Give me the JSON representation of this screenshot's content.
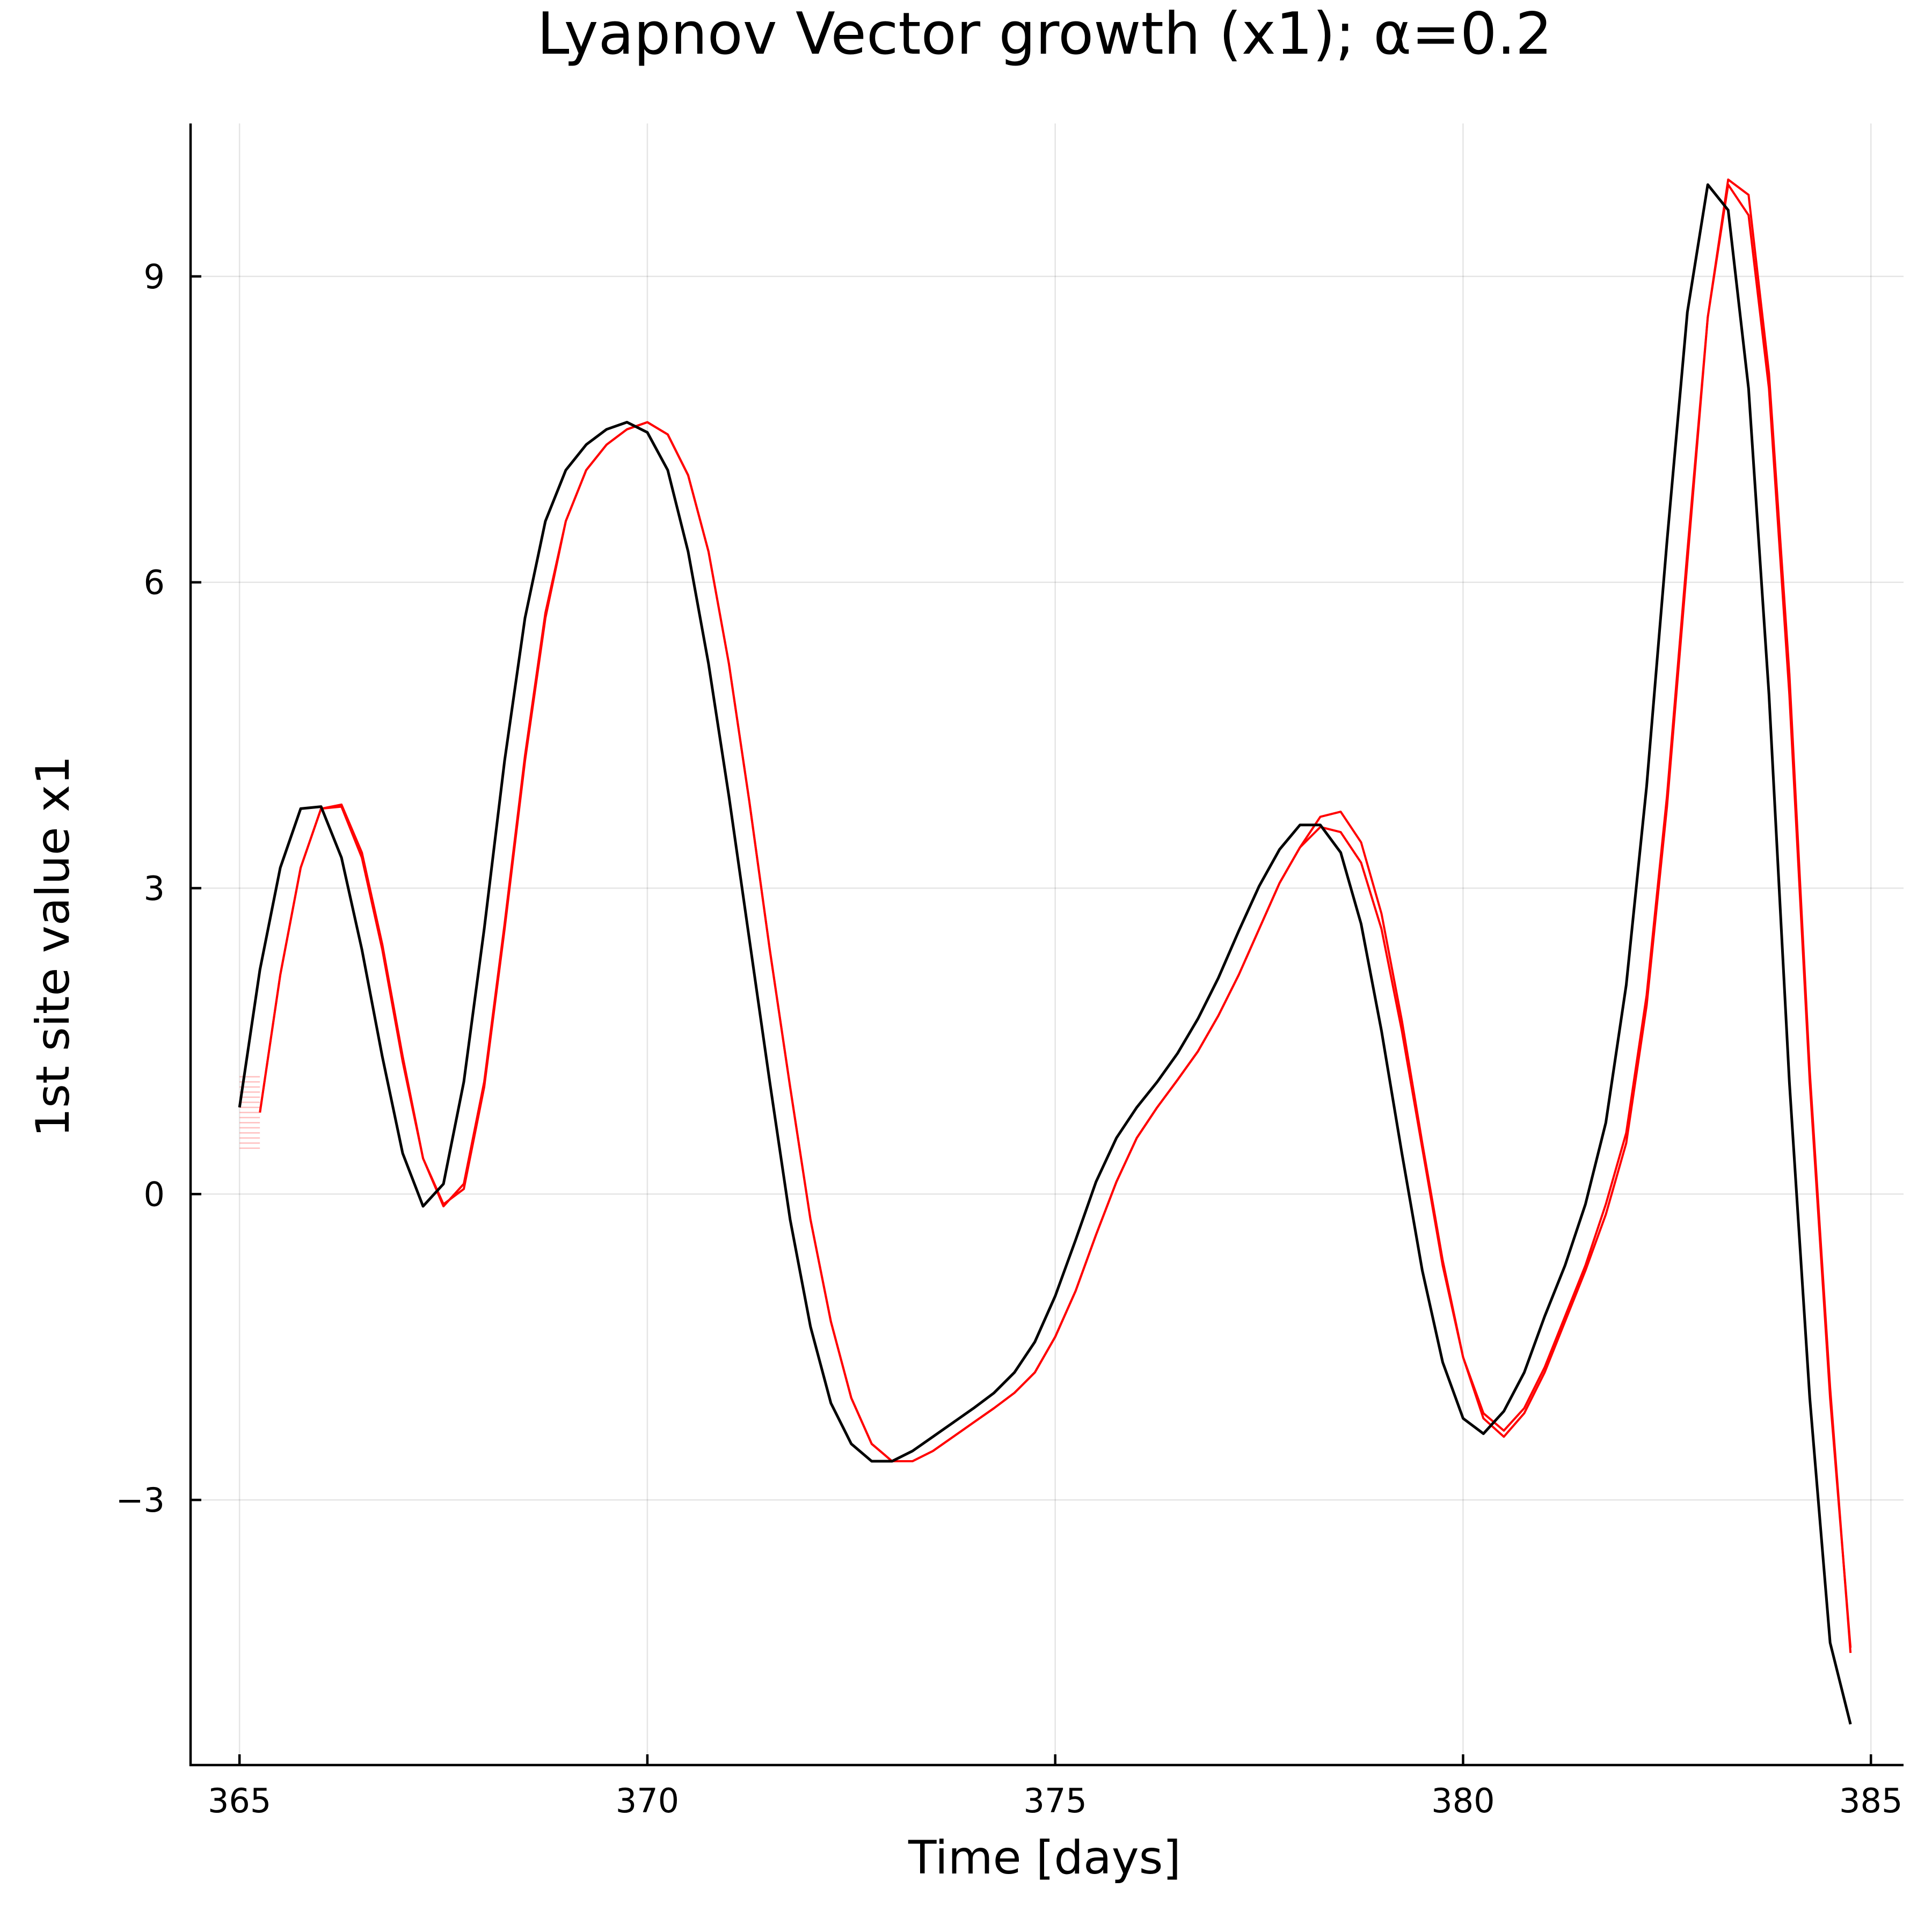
{
  "chart_data": {
    "type": "line",
    "title": "Lyapnov Vector growth (x1); α=0.2",
    "xlabel": "Time [days]",
    "ylabel": "1st site value x1",
    "xlim": [
      364.4,
      385.4
    ],
    "ylim": [
      -5.6,
      10.5
    ],
    "grid": true,
    "legend": "none",
    "x_ticks": [
      365,
      370,
      375,
      380,
      385
    ],
    "x_tick_labels": [
      "365",
      "370",
      "375",
      "380",
      "385"
    ],
    "y_ticks": [
      -3,
      0,
      3,
      6,
      9
    ],
    "y_tick_labels": [
      "−3",
      "0",
      "3",
      "6",
      "9"
    ],
    "colors": {
      "reference": "#000000",
      "perturbed": "#ff0000"
    },
    "series": [
      {
        "color": "#000000",
        "x": [
          365.0,
          365.25,
          365.5,
          365.75,
          366.0,
          366.25,
          366.5,
          366.75,
          367.0,
          367.25,
          367.5,
          367.75,
          368.0,
          368.25,
          368.5,
          368.75,
          369.0,
          369.25,
          369.5,
          369.75,
          370.0,
          370.25,
          370.5,
          370.75,
          371.0,
          371.25,
          371.5,
          371.75,
          372.0,
          372.25,
          372.5,
          372.75,
          373.0,
          373.25,
          373.5,
          373.75,
          374.0,
          374.25,
          374.5,
          374.75,
          375.0,
          375.25,
          375.5,
          375.75,
          376.0,
          376.25,
          376.5,
          376.75,
          377.0,
          377.25,
          377.5,
          377.75,
          378.0,
          378.25,
          378.5,
          378.75,
          379.0,
          379.25,
          379.5,
          379.75,
          380.0,
          380.25,
          380.5,
          380.75,
          381.0,
          381.25,
          381.5,
          381.75,
          382.0,
          382.25,
          382.5,
          382.75,
          383.0,
          383.25,
          383.5,
          383.75,
          384.0,
          384.25,
          384.5,
          384.75
        ],
        "values": [
          0.85,
          2.2,
          3.2,
          3.78,
          3.8,
          3.3,
          2.4,
          1.35,
          0.4,
          -0.12,
          0.1,
          1.1,
          2.6,
          4.25,
          5.65,
          6.6,
          7.1,
          7.35,
          7.5,
          7.57,
          7.47,
          7.1,
          6.3,
          5.2,
          3.9,
          2.5,
          1.1,
          -0.25,
          -1.3,
          -2.05,
          -2.45,
          -2.62,
          -2.62,
          -2.52,
          -2.38,
          -2.24,
          -2.1,
          -1.95,
          -1.75,
          -1.45,
          -1.0,
          -0.45,
          0.12,
          0.55,
          0.85,
          1.1,
          1.38,
          1.72,
          2.12,
          2.58,
          3.02,
          3.38,
          3.62,
          3.62,
          3.35,
          2.65,
          1.6,
          0.4,
          -0.75,
          -1.65,
          -2.2,
          -2.35,
          -2.13,
          -1.75,
          -1.2,
          -0.7,
          -0.1,
          0.7,
          2.05,
          4.0,
          6.4,
          8.65,
          9.9,
          9.65,
          7.9,
          4.9,
          1.1,
          -2.0,
          -4.4,
          -5.2
        ]
      },
      {
        "color": "#ff0000",
        "x": [
          365.25,
          365.5,
          365.75,
          366.0,
          366.25,
          366.5,
          366.75,
          367.0,
          367.25,
          367.5,
          367.75,
          368.0,
          368.25,
          368.5,
          368.75,
          369.0,
          369.25,
          369.5,
          369.75,
          370.0,
          370.25,
          370.5,
          370.75,
          371.0,
          371.25,
          371.5,
          371.75,
          372.0,
          372.25,
          372.5,
          372.75,
          373.0,
          373.25,
          373.5,
          373.75,
          374.0,
          374.25,
          374.5,
          374.75,
          375.0,
          375.25,
          375.5,
          375.75,
          376.0,
          376.25,
          376.5,
          376.75,
          377.0,
          377.25,
          377.5,
          377.75,
          378.0,
          378.25,
          378.5,
          378.75,
          379.0,
          379.25,
          379.5,
          379.75,
          380.0,
          380.25,
          380.5,
          380.75,
          381.0,
          381.25,
          381.5,
          381.75,
          382.0,
          382.25,
          382.5,
          382.75,
          383.0,
          383.25,
          383.5,
          383.75,
          384.0,
          384.25,
          384.5,
          384.75
        ],
        "values": [
          0.8,
          2.15,
          3.2,
          3.78,
          3.82,
          3.35,
          2.45,
          1.35,
          0.35,
          -0.12,
          0.1,
          1.1,
          2.65,
          4.3,
          5.7,
          6.6,
          7.1,
          7.35,
          7.5,
          7.57,
          7.45,
          7.05,
          6.3,
          5.2,
          3.85,
          2.4,
          1.05,
          -0.25,
          -1.25,
          -2.0,
          -2.45,
          -2.62,
          -2.62,
          -2.52,
          -2.38,
          -2.24,
          -2.1,
          -1.95,
          -1.75,
          -1.4,
          -0.95,
          -0.4,
          0.12,
          0.55,
          0.85,
          1.12,
          1.4,
          1.75,
          2.15,
          2.6,
          3.05,
          3.4,
          3.6,
          3.55,
          3.25,
          2.6,
          1.6,
          0.45,
          -0.7,
          -1.6,
          -2.15,
          -2.32,
          -2.1,
          -1.7,
          -1.2,
          -0.7,
          -0.1,
          0.6,
          1.95,
          3.9,
          6.3,
          8.6,
          9.9,
          9.6,
          7.9,
          4.9,
          1.1,
          -2.0,
          -4.45
        ]
      },
      {
        "color": "#ff0000",
        "x": [
          365.25,
          365.5,
          365.75,
          366.0,
          366.25,
          366.5,
          366.75,
          367.0,
          367.25,
          367.5,
          367.75,
          368.0,
          368.25,
          368.5,
          368.75,
          369.0,
          369.25,
          369.5,
          369.75,
          370.0,
          370.25,
          370.5,
          370.75,
          371.0,
          371.25,
          371.5,
          371.75,
          372.0,
          372.25,
          372.5,
          372.75,
          373.0,
          373.25,
          373.5,
          373.75,
          374.0,
          374.25,
          374.5,
          374.75,
          375.0,
          375.25,
          375.5,
          375.75,
          376.0,
          376.25,
          376.5,
          376.75,
          377.0,
          377.25,
          377.5,
          377.75,
          378.0,
          378.25,
          378.5,
          378.75,
          379.0,
          379.25,
          379.5,
          379.75,
          380.0,
          380.25,
          380.5,
          380.75,
          381.0,
          381.25,
          381.5,
          381.75,
          382.0,
          382.25,
          382.5,
          382.75,
          383.0,
          383.25,
          383.5,
          383.75,
          384.0,
          384.25,
          384.5,
          384.75
        ],
        "values": [
          0.8,
          2.15,
          3.2,
          3.78,
          3.8,
          3.3,
          2.4,
          1.3,
          0.35,
          -0.1,
          0.05,
          1.05,
          2.6,
          4.25,
          5.65,
          6.6,
          7.1,
          7.35,
          7.5,
          7.57,
          7.45,
          7.05,
          6.3,
          5.2,
          3.85,
          2.4,
          1.05,
          -0.25,
          -1.25,
          -2.0,
          -2.45,
          -2.62,
          -2.62,
          -2.52,
          -2.38,
          -2.24,
          -2.1,
          -1.95,
          -1.75,
          -1.4,
          -0.95,
          -0.4,
          0.12,
          0.55,
          0.85,
          1.12,
          1.4,
          1.75,
          2.15,
          2.6,
          3.05,
          3.4,
          3.7,
          3.75,
          3.45,
          2.75,
          1.7,
          0.5,
          -0.65,
          -1.6,
          -2.2,
          -2.38,
          -2.15,
          -1.75,
          -1.25,
          -0.75,
          -0.2,
          0.5,
          1.85,
          3.8,
          6.2,
          8.6,
          9.95,
          9.8,
          8.05,
          5.1,
          1.2,
          -1.9,
          -4.5
        ]
      }
    ],
    "ensemble_start": {
      "x": 365.25,
      "values": [
        0.45,
        0.5,
        0.55,
        0.6,
        0.65,
        0.7,
        0.75,
        0.8,
        0.85,
        0.9,
        0.95,
        1.0,
        1.05,
        1.1,
        1.15
      ]
    }
  }
}
